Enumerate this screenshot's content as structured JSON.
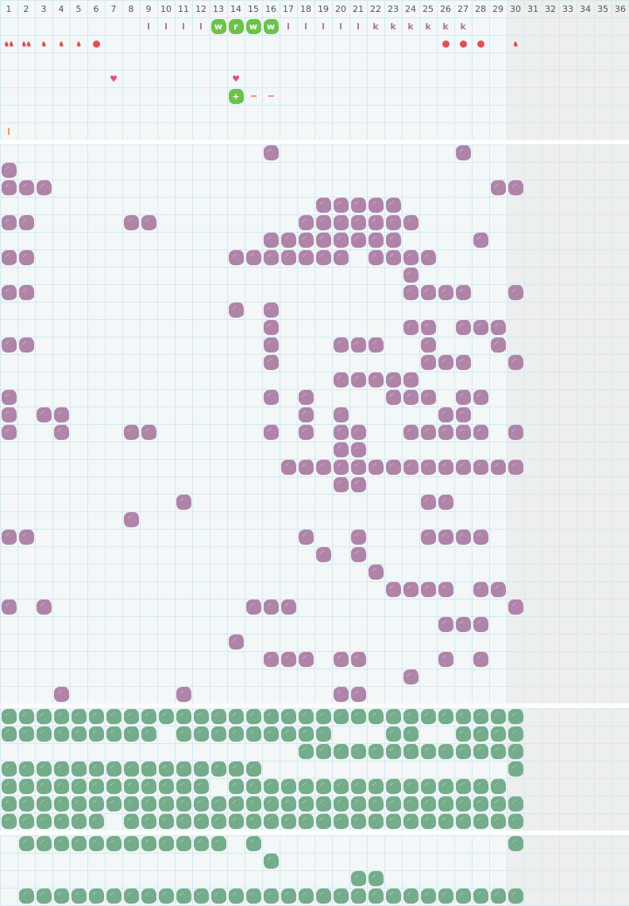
{
  "columns": [
    "1",
    "2",
    "3",
    "4",
    "5",
    "6",
    "7",
    "8",
    "9",
    "10",
    "11",
    "12",
    "13",
    "14",
    "15",
    "16",
    "17",
    "18",
    "19",
    "20",
    "21",
    "22",
    "23",
    "24",
    "25",
    "26",
    "27",
    "28",
    "29",
    "30",
    "31",
    "32",
    "33",
    "34",
    "35",
    "36"
  ],
  "colors": {
    "purple": "#b084a9",
    "green": "#75ac8b",
    "bright_green": "#6cc24a",
    "red": "#e05050",
    "heart": "#e0507a",
    "orange": "#f09868",
    "grid": "#d3e9f2",
    "shaded": "#eeeeee"
  },
  "top_section": [
    {
      "row": 0,
      "col": 9,
      "type": "letter",
      "text": "l"
    },
    {
      "row": 0,
      "col": 10,
      "type": "letter",
      "text": "l"
    },
    {
      "row": 0,
      "col": 11,
      "type": "letter",
      "text": "l"
    },
    {
      "row": 0,
      "col": 12,
      "type": "letter",
      "text": "l"
    },
    {
      "row": 0,
      "col": 13,
      "type": "green-tile",
      "text": "w"
    },
    {
      "row": 0,
      "col": 14,
      "type": "green-tile",
      "text": "r"
    },
    {
      "row": 0,
      "col": 15,
      "type": "green-tile",
      "text": "w"
    },
    {
      "row": 0,
      "col": 16,
      "type": "green-tile",
      "text": "w"
    },
    {
      "row": 0,
      "col": 17,
      "type": "letter",
      "text": "l"
    },
    {
      "row": 0,
      "col": 18,
      "type": "letter",
      "text": "l"
    },
    {
      "row": 0,
      "col": 19,
      "type": "letter",
      "text": "l"
    },
    {
      "row": 0,
      "col": 20,
      "type": "letter",
      "text": "l"
    },
    {
      "row": 0,
      "col": 21,
      "type": "letter",
      "text": "l"
    },
    {
      "row": 0,
      "col": 22,
      "type": "letter",
      "text": "k"
    },
    {
      "row": 0,
      "col": 23,
      "type": "letter",
      "text": "k"
    },
    {
      "row": 0,
      "col": 24,
      "type": "letter",
      "text": "k"
    },
    {
      "row": 0,
      "col": 25,
      "type": "letter",
      "text": "k"
    },
    {
      "row": 0,
      "col": 26,
      "type": "letter",
      "text": "k"
    },
    {
      "row": 0,
      "col": 27,
      "type": "letter",
      "text": "k"
    },
    {
      "row": 1,
      "col": 1,
      "type": "drops",
      "count": 2
    },
    {
      "row": 1,
      "col": 2,
      "type": "drops",
      "count": 2
    },
    {
      "row": 1,
      "col": 3,
      "type": "drops",
      "count": 1
    },
    {
      "row": 1,
      "col": 4,
      "type": "drops",
      "count": 1
    },
    {
      "row": 1,
      "col": 5,
      "type": "drops",
      "count": 1
    },
    {
      "row": 1,
      "col": 6,
      "type": "dot"
    },
    {
      "row": 1,
      "col": 26,
      "type": "dot"
    },
    {
      "row": 1,
      "col": 27,
      "type": "dot"
    },
    {
      "row": 1,
      "col": 28,
      "type": "dot"
    },
    {
      "row": 1,
      "col": 30,
      "type": "drops",
      "count": 1
    },
    {
      "row": 3,
      "col": 7,
      "type": "heart"
    },
    {
      "row": 3,
      "col": 14,
      "type": "heart"
    },
    {
      "row": 4,
      "col": 14,
      "type": "green-tile",
      "text": "+"
    },
    {
      "row": 4,
      "col": 15,
      "type": "dash"
    },
    {
      "row": 4,
      "col": 16,
      "type": "dash"
    },
    {
      "row": 6,
      "col": 1,
      "type": "vbar"
    }
  ],
  "purple_section": [
    [
      16,
      27
    ],
    [
      1
    ],
    [
      1,
      2,
      3,
      29,
      30
    ],
    [
      19,
      20,
      21,
      22,
      23
    ],
    [
      1,
      2,
      8,
      9,
      18,
      19,
      20,
      21,
      22,
      23,
      24
    ],
    [
      16,
      17,
      18,
      19,
      20,
      21,
      22,
      23,
      28
    ],
    [
      1,
      2,
      14,
      15,
      16,
      17,
      18,
      19,
      20,
      22,
      23,
      24,
      25
    ],
    [
      24
    ],
    [
      1,
      2,
      24,
      25,
      26,
      27,
      30
    ],
    [
      14,
      16
    ],
    [
      16,
      24,
      25,
      27,
      28,
      29
    ],
    [
      1,
      2,
      16,
      20,
      21,
      22,
      25,
      29
    ],
    [
      16,
      25,
      26,
      27,
      30
    ],
    [
      20,
      21,
      22,
      23,
      24
    ],
    [
      1,
      16,
      18,
      23,
      24,
      25,
      27,
      28
    ],
    [
      1,
      3,
      4,
      18,
      20,
      26,
      27
    ],
    [
      1,
      4,
      8,
      9,
      16,
      18,
      20,
      21,
      24,
      25,
      26,
      27,
      28,
      30
    ],
    [
      20,
      21
    ],
    [
      17,
      18,
      19,
      20,
      21,
      22,
      23,
      24,
      25,
      26,
      27,
      28,
      29,
      30
    ],
    [
      20,
      21
    ],
    [
      11,
      25,
      26
    ],
    [
      8
    ],
    [
      1,
      2,
      18,
      21,
      25,
      26,
      27,
      28
    ],
    [
      19,
      21
    ],
    [
      22
    ],
    [
      23,
      24,
      25,
      26,
      28,
      29
    ],
    [
      1,
      3,
      15,
      16,
      17,
      30
    ],
    [
      26,
      27,
      28
    ],
    [
      14
    ],
    [
      16,
      17,
      18,
      20,
      21,
      26,
      28
    ],
    [
      24
    ],
    [
      4,
      11,
      20,
      21
    ]
  ],
  "green_section": [
    [
      1,
      2,
      3,
      4,
      5,
      6,
      7,
      8,
      9,
      10,
      11,
      12,
      13,
      14,
      15,
      16,
      17,
      18,
      19,
      20,
      21,
      22,
      23,
      24,
      25,
      26,
      27,
      28,
      29,
      30
    ],
    [
      1,
      2,
      3,
      4,
      5,
      6,
      7,
      8,
      9,
      11,
      12,
      13,
      14,
      15,
      16,
      17,
      18,
      19,
      23,
      24,
      27,
      28,
      29,
      30
    ],
    [
      18,
      19,
      20,
      21,
      22,
      23,
      24,
      25,
      26,
      27,
      28,
      29,
      30
    ],
    [
      1,
      2,
      3,
      4,
      5,
      6,
      7,
      8,
      9,
      10,
      11,
      12,
      13,
      14,
      15,
      30
    ],
    [
      1,
      2,
      3,
      4,
      5,
      6,
      7,
      8,
      9,
      10,
      11,
      12,
      14,
      15,
      16,
      17,
      18,
      19,
      20,
      21,
      22,
      23,
      24,
      25,
      26,
      27,
      28,
      29
    ],
    [
      1,
      2,
      3,
      4,
      5,
      6,
      7,
      8,
      9,
      10,
      11,
      12,
      13,
      14,
      15,
      16,
      17,
      18,
      19,
      20,
      21,
      22,
      23,
      24,
      25,
      26,
      27,
      28,
      29,
      30
    ],
    [
      1,
      2,
      3,
      4,
      5,
      6,
      8,
      9,
      10,
      11,
      12,
      13,
      14,
      15,
      16,
      17,
      18,
      19,
      20,
      21,
      22,
      23,
      24,
      25,
      26,
      27,
      28,
      29,
      30
    ]
  ],
  "bottom_section": [
    [
      2,
      3,
      4,
      5,
      6,
      7,
      8,
      9,
      10,
      11,
      12,
      13,
      15,
      30
    ],
    [
      16
    ],
    [
      21,
      22
    ],
    [
      2,
      3,
      4,
      5,
      6,
      7,
      8,
      9,
      10,
      11,
      12,
      13,
      14,
      15,
      16,
      17,
      18,
      19,
      20,
      21,
      22,
      23,
      24,
      25,
      26,
      27,
      28,
      29,
      30
    ]
  ]
}
